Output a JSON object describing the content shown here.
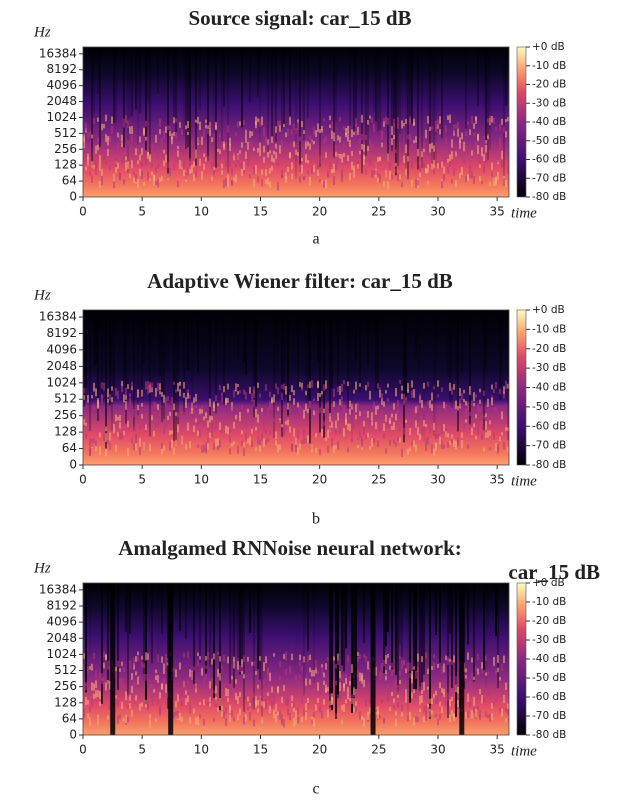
{
  "chart_data": [
    {
      "type": "spectrogram",
      "title": "Source signal: car_15 dB",
      "ylabel": "Hz",
      "xlabel": "time",
      "caption": "a",
      "xlim": [
        0,
        36
      ],
      "xticks": [
        0,
        5,
        10,
        15,
        20,
        25,
        30,
        35
      ],
      "ylim": [
        0,
        22050
      ],
      "yscale": "symlog",
      "linthresh": 64,
      "yticks": [
        0,
        64,
        128,
        256,
        512,
        1024,
        2048,
        4096,
        8192,
        16384
      ],
      "cmap": "magma",
      "clim": [
        -80,
        0
      ],
      "cticks": [
        {
          "value": 0,
          "label": "+0 dB"
        },
        {
          "value": -10,
          "label": "-10 dB"
        },
        {
          "value": -20,
          "label": "-20 dB"
        },
        {
          "value": -30,
          "label": "-30 dB"
        },
        {
          "value": -40,
          "label": "-40 dB"
        },
        {
          "value": -50,
          "label": "-50 dB"
        },
        {
          "value": -60,
          "label": "-60 dB"
        },
        {
          "value": -70,
          "label": "-70 dB"
        },
        {
          "value": -80,
          "label": "-80 dB"
        }
      ]
    },
    {
      "type": "spectrogram",
      "title": "Adaptive Wiener filter: car_15 dB",
      "ylabel": "Hz",
      "xlabel": "time",
      "caption": "b",
      "xlim": [
        0,
        36
      ],
      "xticks": [
        0,
        5,
        10,
        15,
        20,
        25,
        30,
        35
      ],
      "ylim": [
        0,
        22050
      ],
      "yscale": "symlog",
      "linthresh": 64,
      "yticks": [
        0,
        64,
        128,
        256,
        512,
        1024,
        2048,
        4096,
        8192,
        16384
      ],
      "cmap": "magma",
      "clim": [
        -80,
        0
      ],
      "cticks": [
        {
          "value": 0,
          "label": "+0 dB"
        },
        {
          "value": -10,
          "label": "-10 dB"
        },
        {
          "value": -20,
          "label": "-20 dB"
        },
        {
          "value": -30,
          "label": "-30 dB"
        },
        {
          "value": -40,
          "label": "-40 dB"
        },
        {
          "value": -50,
          "label": "-50 dB"
        },
        {
          "value": -60,
          "label": "-60 dB"
        },
        {
          "value": -70,
          "label": "-70 dB"
        },
        {
          "value": -80,
          "label": "-80 dB"
        }
      ]
    },
    {
      "type": "spectrogram",
      "title": [
        "Amalgamed RNNoise neural network:",
        "car_15 dB"
      ],
      "ylabel": "Hz",
      "xlabel": "time",
      "caption": "c",
      "xlim": [
        0,
        36
      ],
      "xticks": [
        0,
        5,
        10,
        15,
        20,
        25,
        30,
        35
      ],
      "ylim": [
        0,
        22050
      ],
      "yscale": "symlog",
      "linthresh": 64,
      "yticks": [
        0,
        64,
        128,
        256,
        512,
        1024,
        2048,
        4096,
        8192,
        16384
      ],
      "cmap": "magma",
      "clim": [
        -80,
        0
      ],
      "cticks": [
        {
          "value": 0,
          "label": "+0 dB"
        },
        {
          "value": -10,
          "label": "-10 dB"
        },
        {
          "value": -20,
          "label": "-20 dB"
        },
        {
          "value": -30,
          "label": "-30 dB"
        },
        {
          "value": -40,
          "label": "-40 dB"
        },
        {
          "value": -50,
          "label": "-50 dB"
        },
        {
          "value": -60,
          "label": "-60 dB"
        },
        {
          "value": -70,
          "label": "-70 dB"
        },
        {
          "value": -80,
          "label": "-80 dB"
        }
      ]
    }
  ]
}
